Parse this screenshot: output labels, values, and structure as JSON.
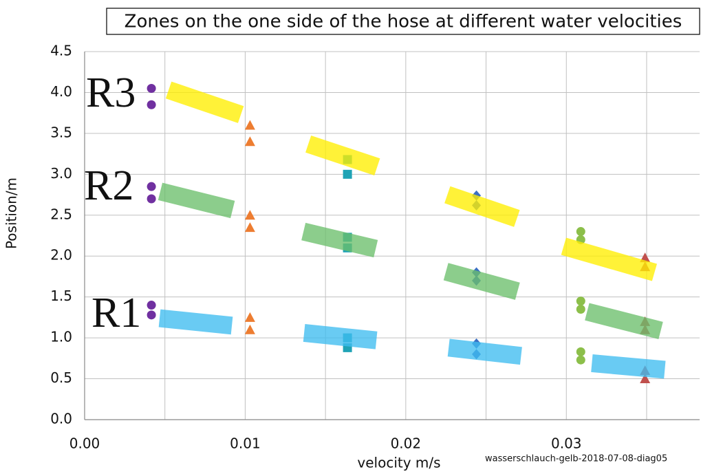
{
  "chart_data": {
    "type": "scatter",
    "title": "Zones on the one side of the hose at different water velocities",
    "x_label": "velocity m/s",
    "y_label": "Position/m",
    "footnote": "wasserschlauch-gelb-2018-07-08-diag05",
    "annotations": [
      "R3",
      "R2",
      "R1"
    ],
    "xlim": [
      0,
      0.0383
    ],
    "ylim": [
      0,
      4.5
    ],
    "xticks": [
      {
        "value": 0,
        "label": "0.00"
      },
      0.01,
      0.02,
      0.03
    ],
    "minor_xticks": [
      0.005,
      0.015,
      0.025,
      0.035
    ],
    "yticks": [
      {
        "value": 0,
        "label": "0.0"
      },
      0.5,
      {
        "value": 1,
        "label": "1.0"
      },
      1.5,
      {
        "value": 2,
        "label": "2.0"
      },
      2.5,
      {
        "value": 3,
        "label": "3.0"
      },
      3.5,
      {
        "value": 4,
        "label": "4.0"
      },
      4.5
    ],
    "grid": true,
    "series": [
      {
        "color": "#7030a0",
        "marker": "circle",
        "x": [
          0.00416,
          0.00416,
          0.00416,
          0.00416,
          0.00416,
          0.00416
        ],
        "values": [
          4.05,
          3.85,
          2.85,
          2.7,
          1.4,
          1.28
        ]
      },
      {
        "color": "#ed7d31",
        "marker": "triangle",
        "x": [
          0.0103,
          0.0103,
          0.0103,
          0.0103,
          0.0103,
          0.0103
        ],
        "values": [
          3.6,
          3.4,
          2.5,
          2.35,
          1.25,
          1.1
        ]
      },
      {
        "color": "#1fa3b5",
        "marker": "square",
        "x": [
          0.01637,
          0.01637,
          0.01637,
          0.01637,
          0.01637,
          0.01637
        ],
        "values": [
          3.18,
          3.0,
          2.23,
          2.1,
          1.0,
          0.88
        ]
      },
      {
        "color": "#3b6fc3",
        "marker": "diamond",
        "x": [
          0.0244,
          0.0244,
          0.0244,
          0.0244,
          0.0244,
          0.0244
        ],
        "values": [
          2.74,
          2.62,
          1.8,
          1.7,
          0.93,
          0.8
        ]
      },
      {
        "color": "#8cbf4a",
        "marker": "circle",
        "x": [
          0.0309,
          0.0309,
          0.0309,
          0.0309,
          0.0309,
          0.0309
        ],
        "values": [
          2.3,
          2.2,
          1.45,
          1.35,
          0.83,
          0.73
        ]
      },
      {
        "color": "#c0504d",
        "marker": "triangle",
        "x": [
          0.0349,
          0.0349,
          0.0349,
          0.0349,
          0.0349,
          0.0349
        ],
        "values": [
          1.98,
          1.87,
          1.2,
          1.1,
          0.6,
          0.5
        ]
      }
    ],
    "bands": [
      {
        "color": "#ffee00",
        "x": [
          0.00523,
          0.00973
        ],
        "y": [
          4.03,
          3.73
        ]
      },
      {
        "color": "#ffee00",
        "x": [
          0.01393,
          0.01822
        ],
        "y": [
          3.37,
          3.09
        ]
      },
      {
        "color": "#ffee00",
        "x": [
          0.02259,
          0.02692
        ],
        "y": [
          2.75,
          2.46
        ]
      },
      {
        "color": "#ffee00",
        "x": [
          0.02983,
          0.03549
        ],
        "y": [
          2.12,
          1.8
        ]
      },
      {
        "color": "#6cbf6c",
        "x": [
          0.00471,
          0.00922
        ],
        "y": [
          2.79,
          2.57
        ]
      },
      {
        "color": "#6cbf6c",
        "x": [
          0.01363,
          0.01813
        ],
        "y": [
          2.3,
          2.09
        ]
      },
      {
        "color": "#6cbf6c",
        "x": [
          0.0225,
          0.02696
        ],
        "y": [
          1.81,
          1.57
        ]
      },
      {
        "color": "#6cbf6c",
        "x": [
          0.03129,
          0.03588
        ],
        "y": [
          1.32,
          1.09
        ]
      },
      {
        "color": "#3fbdf0",
        "x": [
          0.00467,
          0.00917
        ],
        "y": [
          1.24,
          1.15
        ]
      },
      {
        "color": "#3fbdf0",
        "x": [
          0.01367,
          0.01817
        ],
        "y": [
          1.06,
          0.97
        ]
      },
      {
        "color": "#3fbdf0",
        "x": [
          0.02267,
          0.02718
        ],
        "y": [
          0.88,
          0.78
        ]
      },
      {
        "color": "#3fbdf0",
        "x": [
          0.03159,
          0.03613
        ],
        "y": [
          0.69,
          0.61
        ]
      }
    ]
  }
}
